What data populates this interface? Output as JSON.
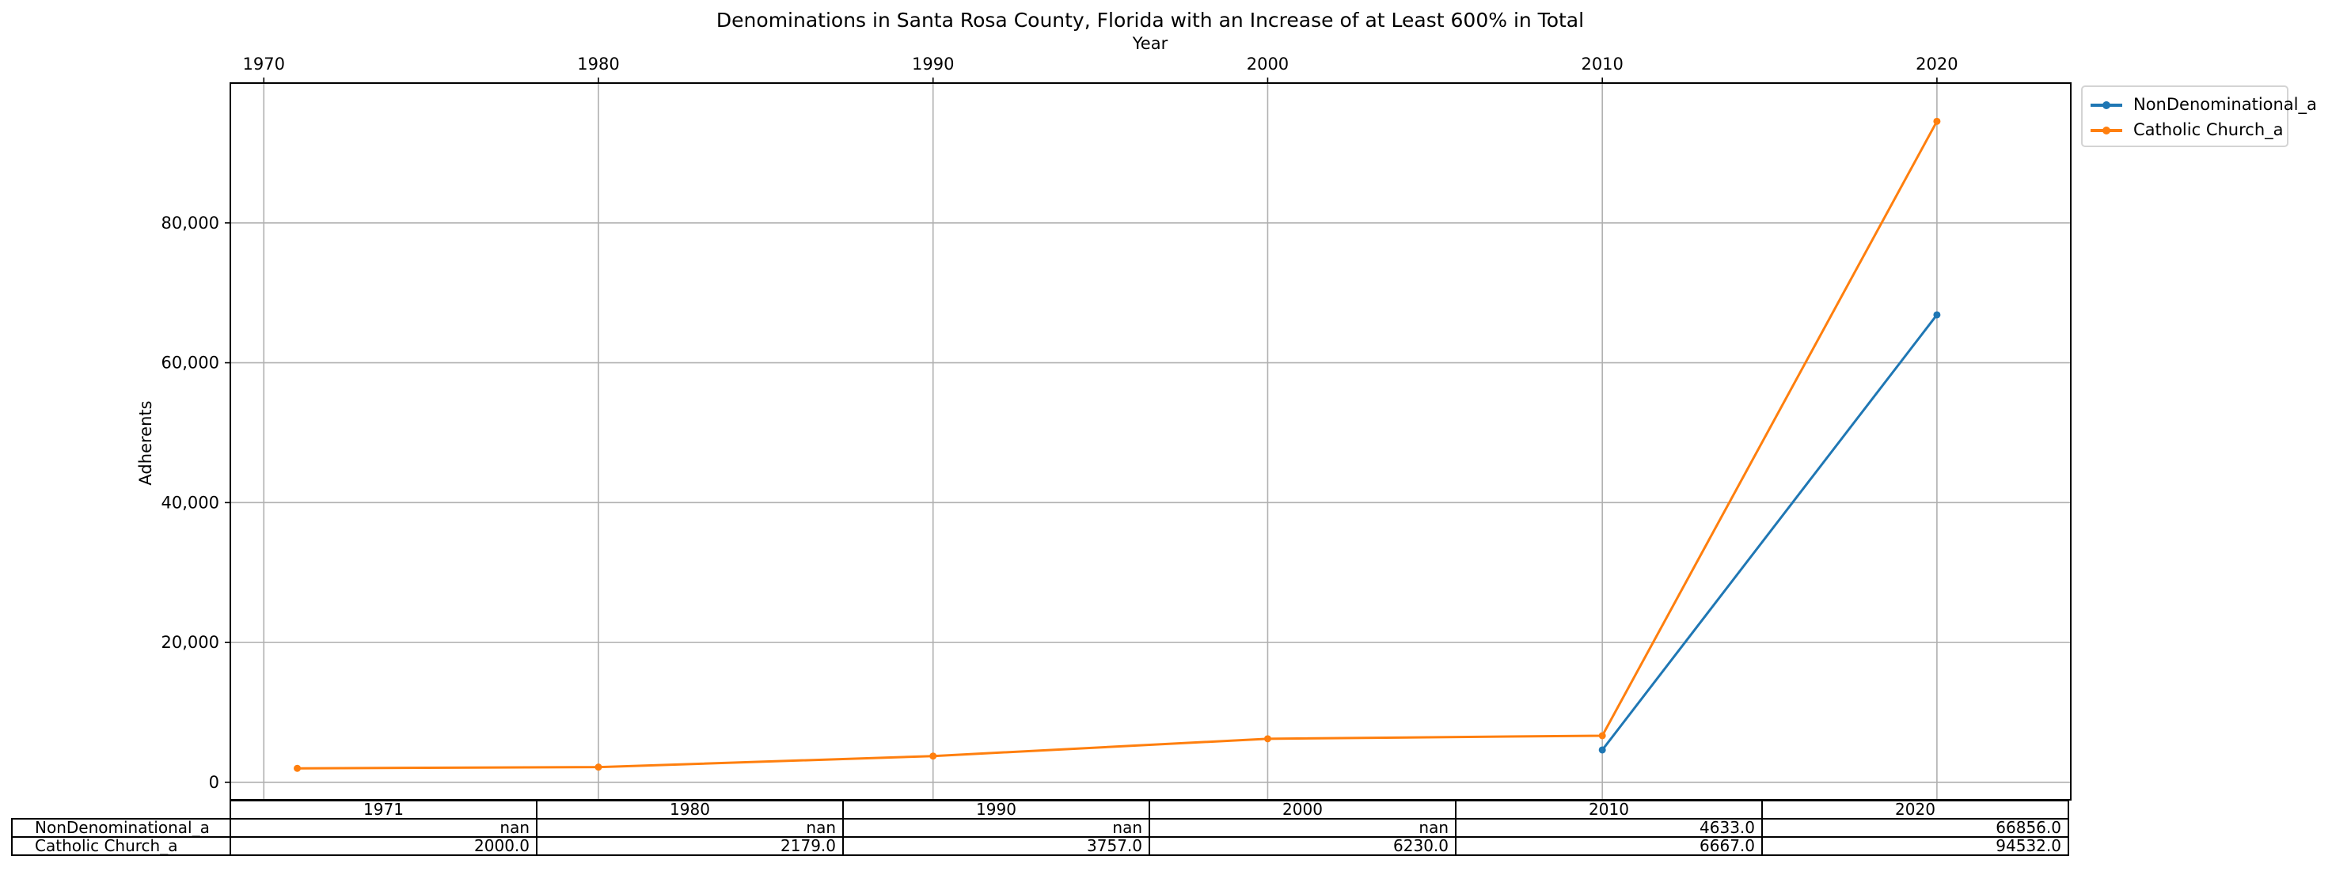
{
  "chart_data": {
    "type": "line",
    "title": "Denominations in Santa Rosa County, Florida with an Increase of at Least 600% in Total",
    "xlabel": "Year",
    "ylabel": "Adherents",
    "xlim": [
      1969,
      2024
    ],
    "ylim": [
      -2500,
      100000
    ],
    "x_ticks": [
      1970,
      1980,
      1990,
      2000,
      2010,
      2020
    ],
    "y_ticks": [
      0,
      20000,
      40000,
      60000,
      80000
    ],
    "y_tick_labels": [
      "0",
      "20,000",
      "40,000",
      "60,000",
      "80,000"
    ],
    "x_axis_position": "top",
    "grid": true,
    "legend_position": "outside upper right",
    "series": [
      {
        "name": "NonDenominational_a",
        "color": "#1f77b4",
        "x": [
          2010,
          2020
        ],
        "values": [
          4633,
          66856
        ]
      },
      {
        "name": "Catholic Church_a",
        "color": "#ff7f0e",
        "x": [
          1971,
          1980,
          1990,
          2000,
          2010,
          2020
        ],
        "values": [
          2000,
          2179,
          3757,
          6230,
          6667,
          94532
        ]
      }
    ],
    "table": {
      "columns": [
        "1971",
        "1980",
        "1990",
        "2000",
        "2010",
        "2020"
      ],
      "rows": [
        {
          "label": "NonDenominational_a",
          "cells": [
            "nan",
            "nan",
            "nan",
            "nan",
            "4633.0",
            "66856.0"
          ]
        },
        {
          "label": "Catholic Church_a",
          "cells": [
            "2000.0",
            "2179.0",
            "3757.0",
            "6230.0",
            "6667.0",
            "94532.0"
          ]
        }
      ]
    }
  }
}
